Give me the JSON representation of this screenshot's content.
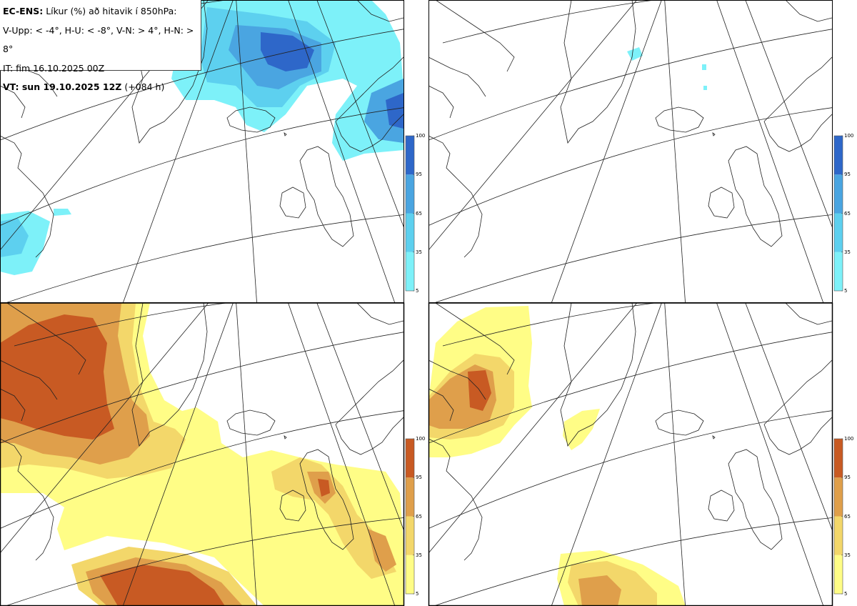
{
  "header": {
    "title_bold": "EC-ENS:",
    "title_rest": "Líkur (%) að hitavik í 850hPa:",
    "thresholds": "V-Upp: < -4°, H-U: < -8°, V-N: > 4°, H-N: > 8°",
    "init_time": "IT: fim 16.10.2025 00Z",
    "valid_label": "VT: sun 19.10.2025 12Z",
    "lead": "(+084 h)"
  },
  "panels": [
    {
      "id": "V-Upp",
      "condition": "< -4°",
      "palette": "blue"
    },
    {
      "id": "H-U",
      "condition": "< -8°",
      "palette": "blue"
    },
    {
      "id": "V-N",
      "condition": "> 4°",
      "palette": "orange"
    },
    {
      "id": "H-N",
      "condition": "> 8°",
      "palette": "orange"
    }
  ],
  "colorbar": {
    "ticks": [
      "5",
      "35",
      "65",
      "95",
      "100"
    ],
    "blue_colors": [
      "#7df1f9",
      "#5dd0ef",
      "#4aa5e1",
      "#2e67c9"
    ],
    "orange_colors": [
      "#fffd86",
      "#f3d76a",
      "#df9f4b",
      "#c85a23"
    ]
  }
}
